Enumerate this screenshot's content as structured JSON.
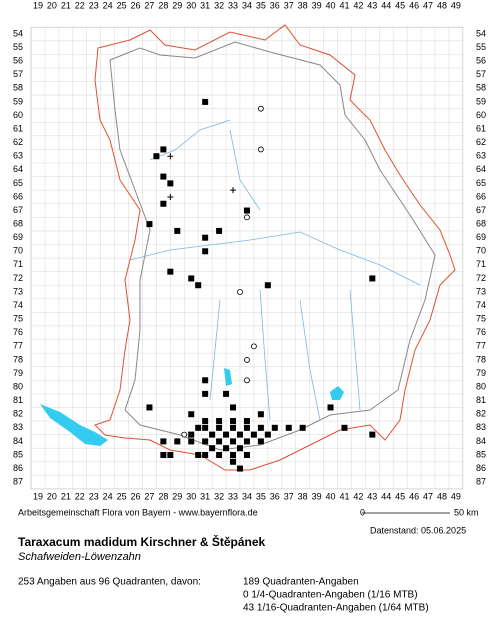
{
  "columns": [
    19,
    20,
    21,
    22,
    23,
    24,
    25,
    26,
    27,
    28,
    29,
    30,
    31,
    32,
    33,
    34,
    35,
    36,
    37,
    38,
    39,
    40,
    41,
    42,
    43,
    44,
    45,
    46,
    47,
    48,
    49
  ],
  "rows": [
    54,
    55,
    56,
    57,
    58,
    59,
    60,
    61,
    62,
    63,
    64,
    65,
    66,
    67,
    68,
    69,
    70,
    71,
    72,
    73,
    74,
    75,
    76,
    77,
    78,
    79,
    80,
    81,
    82,
    83,
    84,
    85,
    86,
    87
  ],
  "markers": {
    "filled": [
      [
        31,
        59
      ],
      [
        28,
        62.5
      ],
      [
        27.5,
        63
      ],
      [
        28,
        64.5
      ],
      [
        28.5,
        65
      ],
      [
        28,
        66.5
      ],
      [
        27,
        68
      ],
      [
        29,
        68.5
      ],
      [
        31,
        69
      ],
      [
        32,
        68.5
      ],
      [
        31,
        70
      ],
      [
        28.5,
        71.5
      ],
      [
        30,
        72
      ],
      [
        30.5,
        72.5
      ],
      [
        35.5,
        72.5
      ],
      [
        43,
        72
      ],
      [
        34,
        67
      ],
      [
        31,
        79.5
      ],
      [
        31,
        80.5
      ],
      [
        27,
        81.5
      ],
      [
        30,
        82
      ],
      [
        32.5,
        80.5
      ],
      [
        33,
        81.5
      ],
      [
        33,
        82.5
      ],
      [
        35,
        82
      ],
      [
        40,
        81.5
      ],
      [
        41,
        83
      ],
      [
        43,
        83.5
      ],
      [
        38,
        83
      ],
      [
        37,
        83
      ],
      [
        36,
        83
      ],
      [
        31,
        82.5
      ],
      [
        32,
        82.5
      ],
      [
        34,
        82.5
      ],
      [
        30.5,
        83
      ],
      [
        31,
        83
      ],
      [
        32,
        83
      ],
      [
        33,
        83
      ],
      [
        34,
        83
      ],
      [
        35,
        83
      ],
      [
        30,
        83.5
      ],
      [
        31.5,
        83.5
      ],
      [
        32.5,
        83.5
      ],
      [
        33.5,
        83.5
      ],
      [
        34.5,
        83.5
      ],
      [
        35.5,
        83.5
      ],
      [
        29,
        84
      ],
      [
        30,
        84
      ],
      [
        31,
        84
      ],
      [
        32,
        84
      ],
      [
        33,
        84
      ],
      [
        34,
        84
      ],
      [
        35,
        84
      ],
      [
        28,
        84
      ],
      [
        28,
        85
      ],
      [
        28.5,
        85
      ],
      [
        31,
        85
      ],
      [
        32,
        85
      ],
      [
        33,
        85
      ],
      [
        34,
        85
      ],
      [
        33,
        85.5
      ],
      [
        33.5,
        86
      ],
      [
        31.5,
        84.5
      ],
      [
        32.5,
        84.5
      ],
      [
        33.5,
        84.5
      ],
      [
        30.5,
        85
      ]
    ],
    "open": [
      [
        35,
        59.5
      ],
      [
        35,
        62.5
      ],
      [
        34,
        67.5
      ],
      [
        33.5,
        73
      ],
      [
        34.5,
        77
      ],
      [
        34,
        78
      ],
      [
        34,
        79.5
      ],
      [
        29.5,
        83.5
      ]
    ],
    "plus": [
      [
        28.5,
        63
      ],
      [
        28.5,
        66
      ],
      [
        33,
        65.5
      ]
    ]
  },
  "footer": {
    "source": "Arbeitsgemeinschaft Flora von Bayern - www.bayernflora.de",
    "scale_start": "0",
    "scale_end": "50 km",
    "date": "Datenstand: 05.06.2025"
  },
  "title": "Taraxacum madidum Kirschner & Štěpánek",
  "subtitle": "Schafweiden-Löwenzahn",
  "summary": "253 Angaben aus 96 Quadranten, davon:",
  "details": [
    "189 Quadranten-Angaben",
    "0 1/4-Quadranten-Angaben (1/16 MTB)",
    "43 1/16-Quadranten-Angaben (1/64 MTB)"
  ]
}
